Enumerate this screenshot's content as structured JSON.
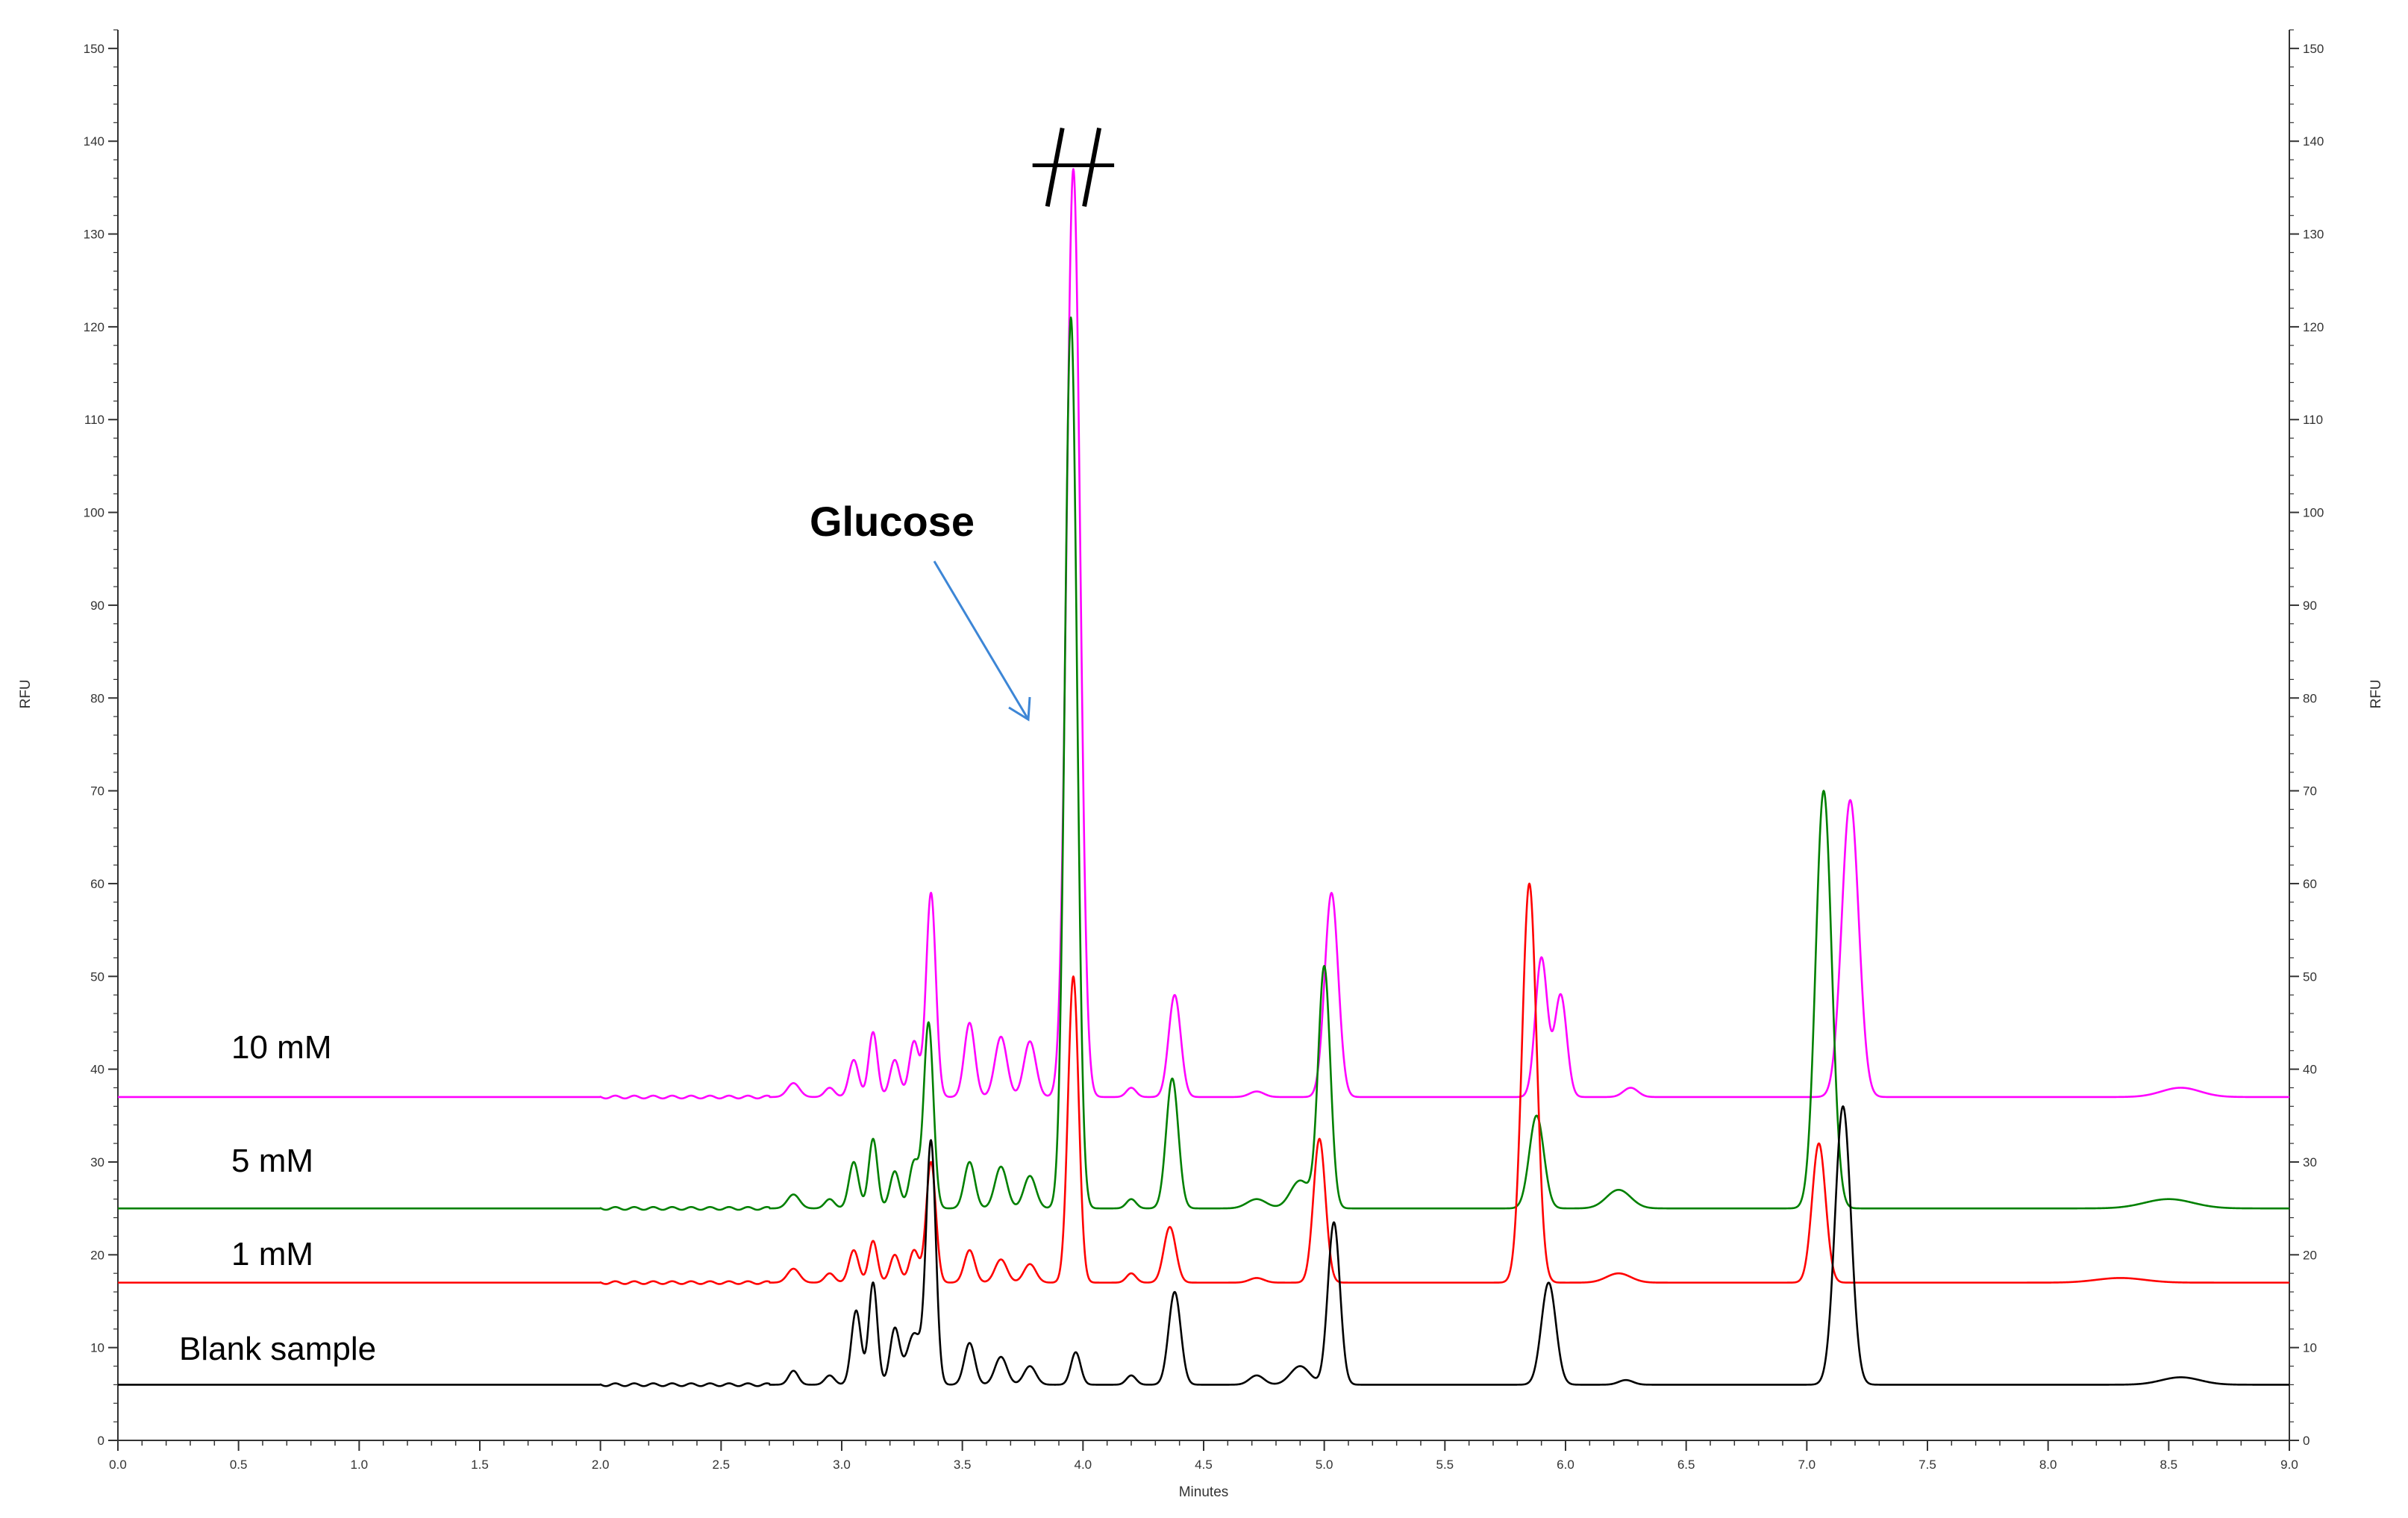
{
  "chart_data": {
    "type": "line",
    "title": "",
    "xlabel": "Minutes",
    "ylabel": "RFU",
    "ylabel_right": "RFU",
    "xlim": [
      0.0,
      9.0
    ],
    "ylim": [
      0,
      152
    ],
    "x_ticks": [
      0.0,
      0.5,
      1.0,
      1.5,
      2.0,
      2.5,
      3.0,
      3.5,
      4.0,
      4.5,
      5.0,
      5.5,
      6.0,
      6.5,
      7.0,
      7.5,
      8.0,
      8.5,
      9.0
    ],
    "x_tick_labels": [
      "0.0",
      "0.5",
      "1.0",
      "1.5",
      "2.0",
      "2.5",
      "3.0",
      "3.5",
      "4.0",
      "4.5",
      "5.0",
      "5.5",
      "6.0",
      "6.5",
      "7.0",
      "7.5",
      "8.0",
      "8.5",
      "9.0"
    ],
    "y_ticks": [
      0,
      10,
      20,
      30,
      40,
      50,
      60,
      70,
      80,
      90,
      100,
      110,
      120,
      130,
      140,
      150
    ],
    "y_tick_labels": [
      "0",
      "10",
      "20",
      "30",
      "40",
      "50",
      "60",
      "70",
      "80",
      "90",
      "100",
      "110",
      "120",
      "130",
      "140",
      "150"
    ],
    "grid": false,
    "series": [
      {
        "name": "10 mM",
        "color": "#ff00ff",
        "baseline": 37,
        "peaks": [
          [
            2.8,
            38.5,
            0.025
          ],
          [
            2.95,
            38,
            0.02
          ],
          [
            3.05,
            41,
            0.02
          ],
          [
            3.13,
            44,
            0.018
          ],
          [
            3.22,
            41,
            0.02
          ],
          [
            3.3,
            43,
            0.02
          ],
          [
            3.37,
            59,
            0.02
          ],
          [
            3.53,
            45,
            0.022
          ],
          [
            3.66,
            43.5,
            0.025
          ],
          [
            3.78,
            43,
            0.025
          ],
          [
            3.96,
            137,
            0.028
          ],
          [
            4.2,
            38,
            0.02
          ],
          [
            4.38,
            48,
            0.025
          ],
          [
            4.72,
            37.6,
            0.03
          ],
          [
            5.03,
            59,
            0.028
          ],
          [
            5.9,
            52,
            0.025
          ],
          [
            5.98,
            48,
            0.025
          ],
          [
            6.27,
            38,
            0.03
          ],
          [
            7.18,
            69,
            0.035
          ],
          [
            8.55,
            38,
            0.08
          ]
        ],
        "clipped_top": 137,
        "clipped_range": [
          3.93,
          3.99
        ]
      },
      {
        "name": "5 mM",
        "color": "#008000",
        "baseline": 25,
        "peaks": [
          [
            2.8,
            26.5,
            0.025
          ],
          [
            2.95,
            26,
            0.02
          ],
          [
            3.05,
            30,
            0.02
          ],
          [
            3.13,
            32.5,
            0.018
          ],
          [
            3.22,
            29,
            0.02
          ],
          [
            3.3,
            30,
            0.02
          ],
          [
            3.36,
            45,
            0.02
          ],
          [
            3.53,
            30,
            0.022
          ],
          [
            3.66,
            29.5,
            0.025
          ],
          [
            3.78,
            28.5,
            0.025
          ],
          [
            3.95,
            121,
            0.025
          ],
          [
            4.2,
            26,
            0.02
          ],
          [
            4.37,
            39,
            0.025
          ],
          [
            4.72,
            26,
            0.04
          ],
          [
            4.9,
            28,
            0.04
          ],
          [
            5.0,
            51,
            0.025
          ],
          [
            5.88,
            35,
            0.03
          ],
          [
            6.22,
            27,
            0.05
          ],
          [
            7.07,
            70,
            0.033
          ],
          [
            8.5,
            26,
            0.1
          ]
        ]
      },
      {
        "name": "1 mM",
        "color": "#ff0000",
        "baseline": 17,
        "peaks": [
          [
            2.8,
            18.5,
            0.025
          ],
          [
            2.95,
            18,
            0.02
          ],
          [
            3.05,
            20.5,
            0.02
          ],
          [
            3.13,
            21.5,
            0.018
          ],
          [
            3.22,
            20,
            0.02
          ],
          [
            3.3,
            20.5,
            0.02
          ],
          [
            3.37,
            30,
            0.02
          ],
          [
            3.53,
            20.5,
            0.022
          ],
          [
            3.66,
            19.5,
            0.025
          ],
          [
            3.78,
            19,
            0.025
          ],
          [
            3.96,
            50,
            0.022
          ],
          [
            4.2,
            18,
            0.02
          ],
          [
            4.36,
            23,
            0.025
          ],
          [
            4.72,
            17.5,
            0.03
          ],
          [
            4.98,
            32.5,
            0.025
          ],
          [
            5.85,
            60,
            0.03
          ],
          [
            6.22,
            18,
            0.05
          ],
          [
            7.05,
            32,
            0.028
          ],
          [
            8.3,
            17.5,
            0.1
          ]
        ]
      },
      {
        "name": "Blank sample",
        "color": "#000000",
        "baseline": 6,
        "peaks": [
          [
            2.8,
            7.5,
            0.02
          ],
          [
            2.95,
            7,
            0.02
          ],
          [
            3.06,
            14,
            0.02
          ],
          [
            3.13,
            17,
            0.018
          ],
          [
            3.22,
            12,
            0.02
          ],
          [
            3.3,
            11.5,
            0.03
          ],
          [
            3.37,
            32,
            0.02
          ],
          [
            3.53,
            10.5,
            0.022
          ],
          [
            3.66,
            9,
            0.025
          ],
          [
            3.78,
            8,
            0.025
          ],
          [
            3.97,
            9.5,
            0.02
          ],
          [
            4.2,
            7,
            0.02
          ],
          [
            4.38,
            16,
            0.025
          ],
          [
            4.72,
            7,
            0.03
          ],
          [
            4.9,
            8,
            0.04
          ],
          [
            5.04,
            23.5,
            0.025
          ],
          [
            5.93,
            17,
            0.03
          ],
          [
            6.25,
            6.5,
            0.03
          ],
          [
            7.15,
            36,
            0.033
          ],
          [
            8.55,
            6.8,
            0.08
          ]
        ]
      }
    ],
    "annotations": [
      {
        "text": "Glucose",
        "x": 3.8,
        "y": 77,
        "type": "arrow"
      }
    ],
    "legend": "inline"
  }
}
